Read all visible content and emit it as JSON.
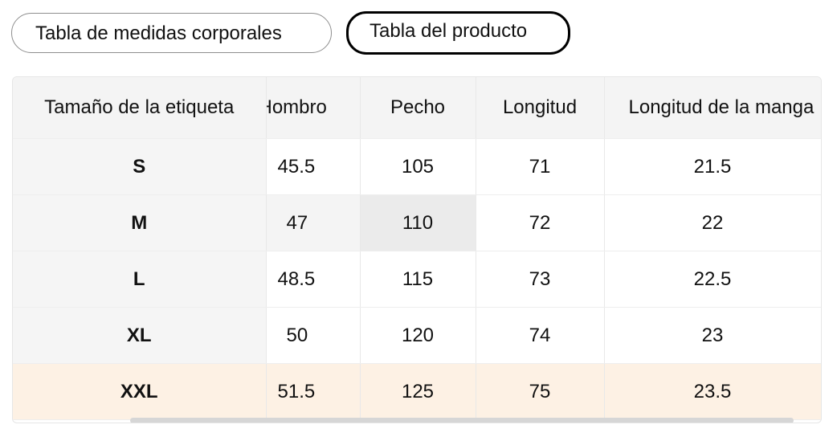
{
  "tabs": [
    {
      "label": "Tabla de medidas corporales",
      "active": false
    },
    {
      "label": "Tabla del producto",
      "active": true
    }
  ],
  "table": {
    "headers": [
      "Tamaño de la etiqueta",
      "Hombro",
      "Pecho",
      "Longitud",
      "Longitud de la manga"
    ],
    "rows": [
      [
        "S",
        "45.5",
        "105",
        "71",
        "21.5"
      ],
      [
        "M",
        "47",
        "110",
        "72",
        "22"
      ],
      [
        "L",
        "48.5",
        "115",
        "73",
        "22.5"
      ],
      [
        "XL",
        "50",
        "120",
        "74",
        "23"
      ],
      [
        "XXL",
        "51.5",
        "125",
        "75",
        "23.5"
      ]
    ]
  },
  "colors": {
    "highlight_row": "#fdf1e4",
    "header_bg": "#f4f4f4",
    "selected_cell": "#ebebeb"
  }
}
